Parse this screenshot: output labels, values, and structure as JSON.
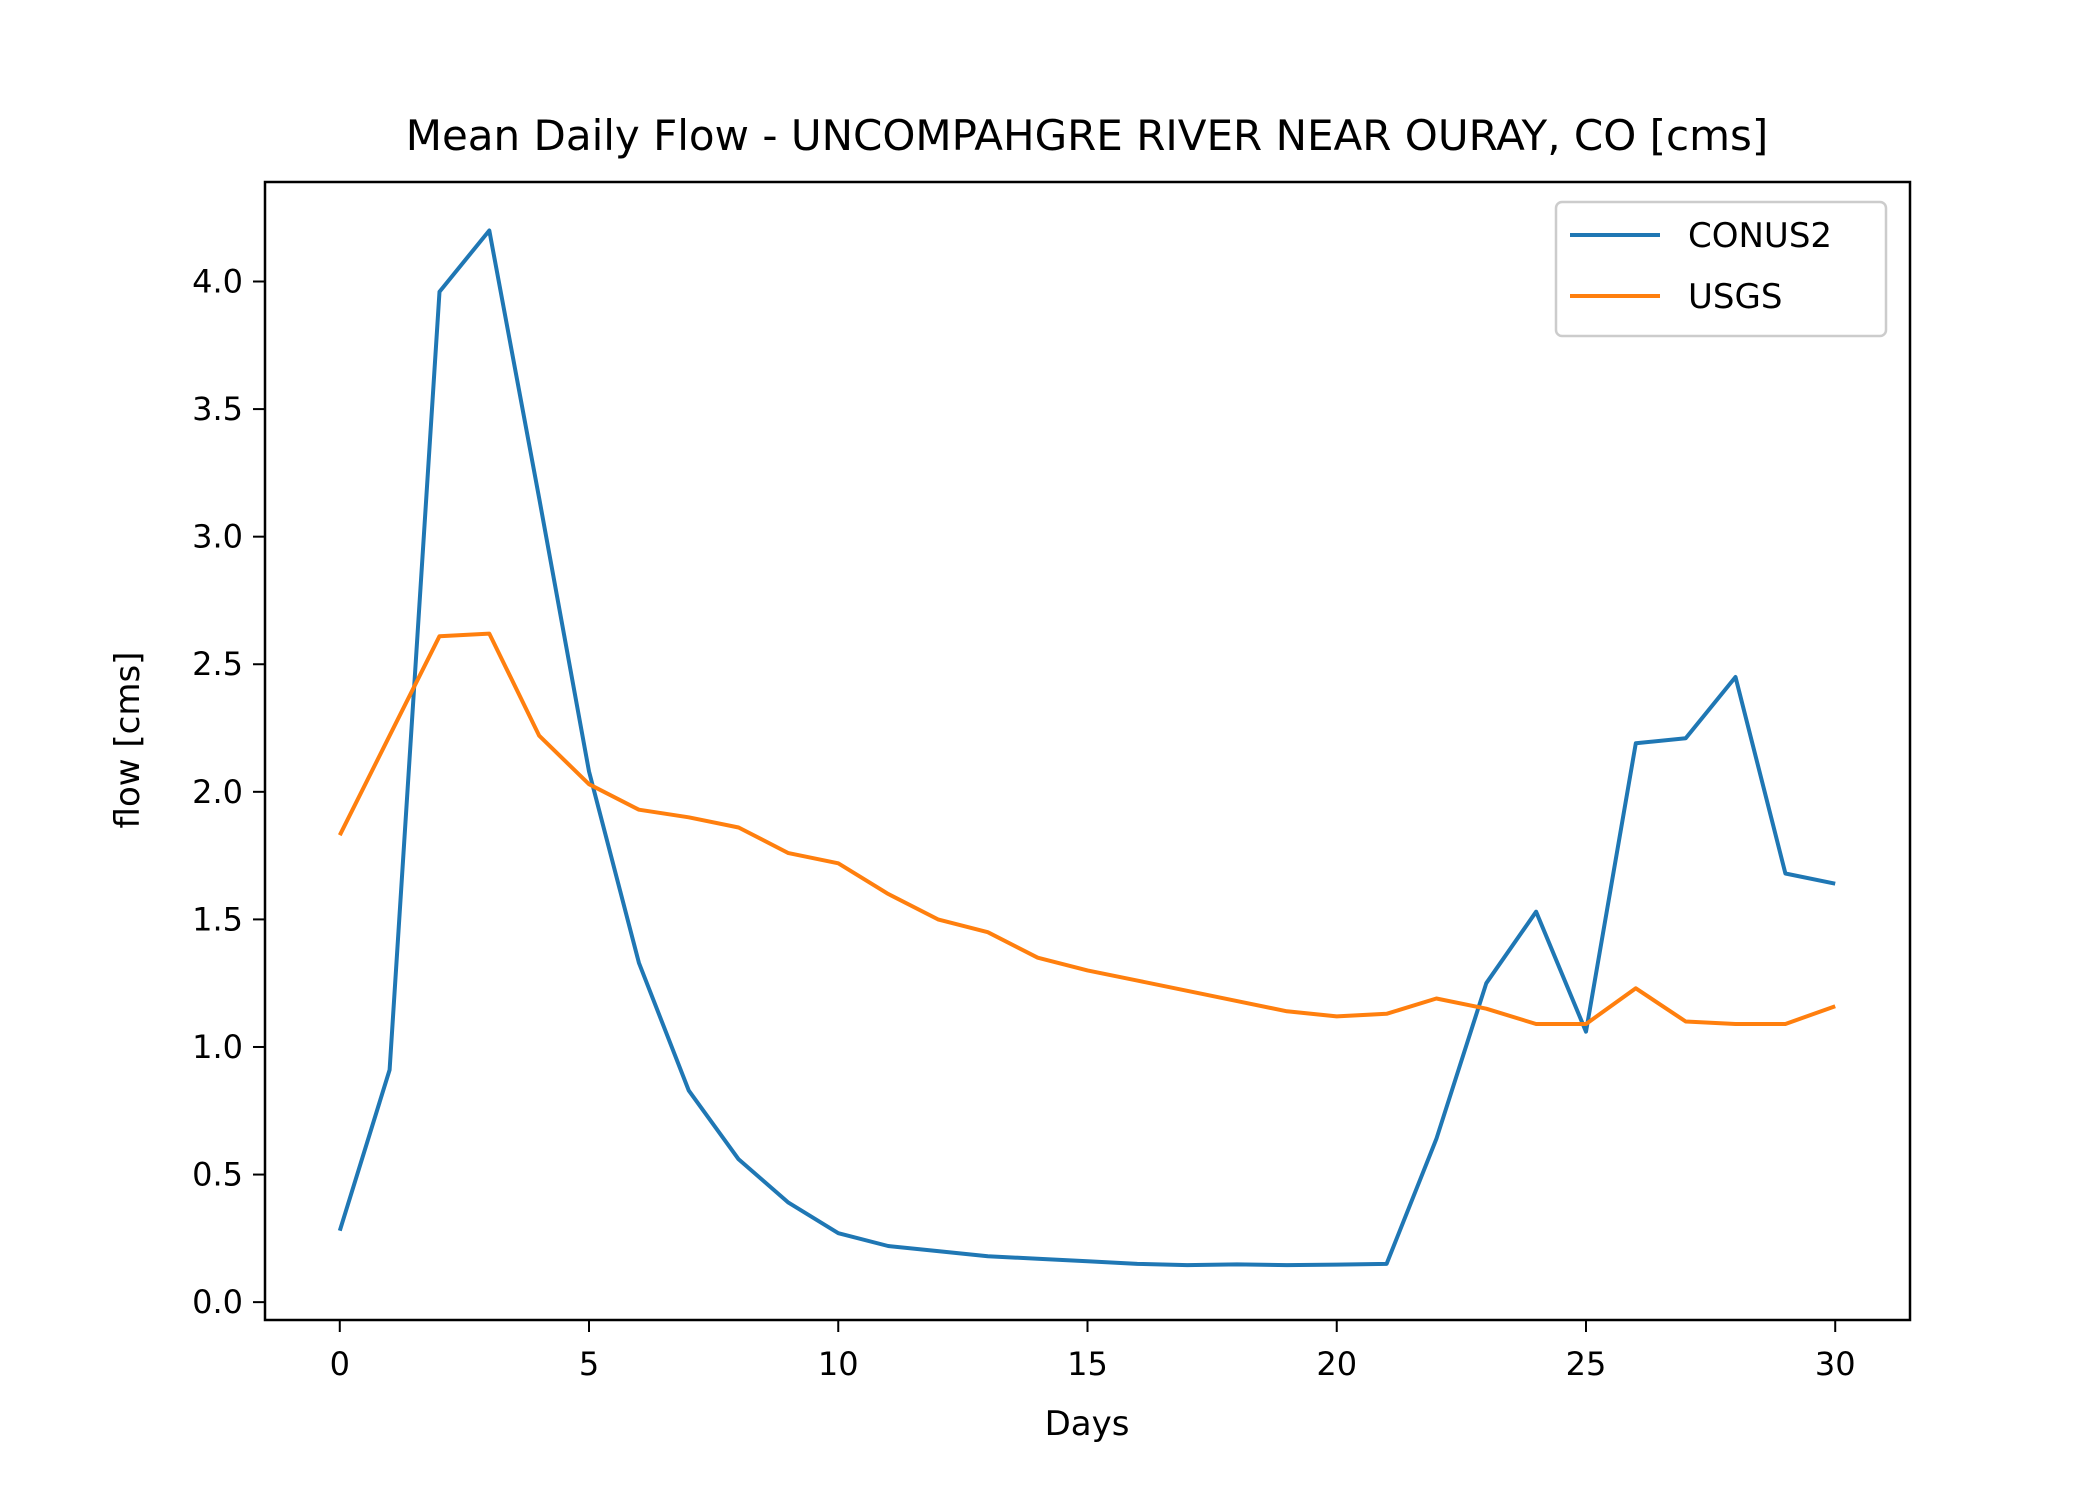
{
  "chart_data": {
    "type": "line",
    "title": "Mean Daily Flow - UNCOMPAHGRE RIVER NEAR OURAY, CO [cms]",
    "xlabel": "Days",
    "ylabel": "flow [cms]",
    "xlim": [
      -1.5,
      31.5
    ],
    "ylim": [
      -0.07,
      4.39
    ],
    "xticks": [
      0,
      5,
      10,
      15,
      20,
      25,
      30
    ],
    "xtick_labels": [
      "0",
      "5",
      "10",
      "15",
      "20",
      "25",
      "30"
    ],
    "yticks": [
      0.0,
      0.5,
      1.0,
      1.5,
      2.0,
      2.5,
      3.0,
      3.5,
      4.0
    ],
    "ytick_labels": [
      "0.0",
      "0.5",
      "1.0",
      "1.5",
      "2.0",
      "2.5",
      "3.0",
      "3.5",
      "4.0"
    ],
    "grid": false,
    "legend_position": "top-right",
    "x": [
      0,
      1,
      2,
      3,
      4,
      5,
      6,
      7,
      8,
      9,
      10,
      11,
      12,
      13,
      14,
      15,
      16,
      17,
      18,
      19,
      20,
      21,
      22,
      23,
      24,
      25,
      26,
      27,
      28,
      29,
      30
    ],
    "series": [
      {
        "name": "CONUS2",
        "color": "#1f77b4",
        "values": [
          0.28,
          0.91,
          3.96,
          4.2,
          3.15,
          2.08,
          1.33,
          0.83,
          0.56,
          0.39,
          0.27,
          0.22,
          0.2,
          0.18,
          0.17,
          0.16,
          0.15,
          0.145,
          0.148,
          0.145,
          0.147,
          0.15,
          0.64,
          1.25,
          1.53,
          1.06,
          2.19,
          2.21,
          2.45,
          1.68,
          1.64
        ]
      },
      {
        "name": "USGS",
        "color": "#ff7f0e",
        "values": [
          1.83,
          2.22,
          2.61,
          2.62,
          2.22,
          2.03,
          1.93,
          1.9,
          1.86,
          1.76,
          1.72,
          1.6,
          1.5,
          1.45,
          1.35,
          1.3,
          1.26,
          1.22,
          1.18,
          1.14,
          1.12,
          1.13,
          1.19,
          1.15,
          1.09,
          1.09,
          1.23,
          1.1,
          1.09,
          1.09,
          1.16
        ]
      }
    ]
  }
}
